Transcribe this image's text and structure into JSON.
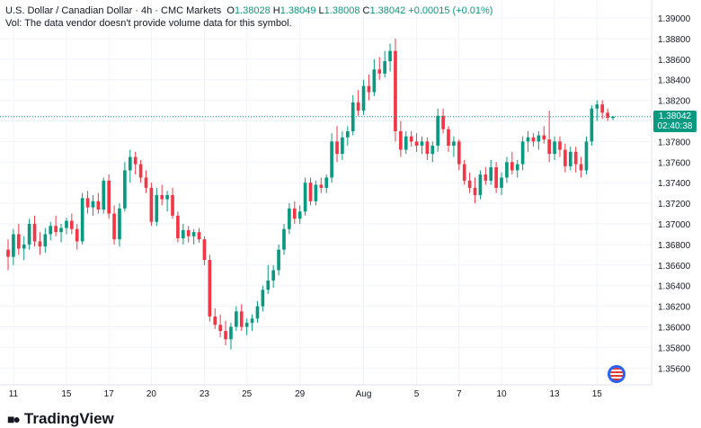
{
  "header": {
    "symbol": "U.S. Dollar / Canadian Dollar · 4h · CMC Markets",
    "o_label": "O",
    "o": "1.38028",
    "h_label": "H",
    "h": "1.38049",
    "l_label": "L",
    "l": "1.38008",
    "c_label": "C",
    "c": "1.38042",
    "change": "+0.00015 (+0.01%)",
    "vol_note": "Vol: The data vendor doesn't provide volume data for this symbol."
  },
  "price_label": {
    "price": "1.38042",
    "countdown": "02:40:38"
  },
  "brand": {
    "name": "TradingView"
  },
  "colors": {
    "up": "#089981",
    "down": "#f23645",
    "grid": "#f0f3fa",
    "last_line": "#089981"
  },
  "chart_data": {
    "type": "candlestick",
    "y_axis": {
      "min": 1.355,
      "max": 1.391,
      "ticks": [
        "1.39000",
        "1.38800",
        "1.38600",
        "1.38400",
        "1.38200",
        "1.38000",
        "1.37800",
        "1.37600",
        "1.37400",
        "1.37200",
        "1.37000",
        "1.36800",
        "1.36600",
        "1.36400",
        "1.36200",
        "1.36000",
        "1.35800",
        "1.35600"
      ]
    },
    "x_axis": {
      "ticks": [
        {
          "label": "11",
          "i": 1
        },
        {
          "label": "15",
          "i": 11
        },
        {
          "label": "17",
          "i": 19
        },
        {
          "label": "20",
          "i": 27
        },
        {
          "label": "23",
          "i": 37
        },
        {
          "label": "25",
          "i": 45
        },
        {
          "label": "29",
          "i": 55
        },
        {
          "label": "Aug",
          "i": 67
        },
        {
          "label": "5",
          "i": 77
        },
        {
          "label": "7",
          "i": 85
        },
        {
          "label": "10",
          "i": 93
        },
        {
          "label": "13",
          "i": 103
        },
        {
          "label": "15",
          "i": 111
        }
      ]
    },
    "grid": true,
    "last_price": 1.38042,
    "candles": [
      [
        1.3675,
        1.3685,
        1.3655,
        1.3668
      ],
      [
        1.3668,
        1.3695,
        1.366,
        1.369
      ],
      [
        1.369,
        1.37,
        1.367,
        1.3676
      ],
      [
        1.3676,
        1.3688,
        1.3665,
        1.368
      ],
      [
        1.368,
        1.3705,
        1.3675,
        1.37
      ],
      [
        1.37,
        1.3708,
        1.3678,
        1.3683
      ],
      [
        1.3683,
        1.3692,
        1.367,
        1.3678
      ],
      [
        1.3678,
        1.3696,
        1.3672,
        1.369
      ],
      [
        1.369,
        1.3702,
        1.3684,
        1.3698
      ],
      [
        1.3698,
        1.3708,
        1.3688,
        1.3692
      ],
      [
        1.3692,
        1.37,
        1.3682,
        1.3696
      ],
      [
        1.3696,
        1.3706,
        1.369,
        1.3703
      ],
      [
        1.3703,
        1.371,
        1.369,
        1.3695
      ],
      [
        1.3695,
        1.37,
        1.3675,
        1.3683
      ],
      [
        1.3683,
        1.373,
        1.368,
        1.3725
      ],
      [
        1.3725,
        1.3732,
        1.371,
        1.3716
      ],
      [
        1.3716,
        1.3728,
        1.3708,
        1.3722
      ],
      [
        1.3722,
        1.373,
        1.371,
        1.3714
      ],
      [
        1.3714,
        1.3745,
        1.371,
        1.3742
      ],
      [
        1.3742,
        1.3748,
        1.3705,
        1.371
      ],
      [
        1.371,
        1.3718,
        1.368,
        1.3685
      ],
      [
        1.3685,
        1.372,
        1.3678,
        1.3715
      ],
      [
        1.3715,
        1.376,
        1.3712,
        1.3752
      ],
      [
        1.3752,
        1.3772,
        1.374,
        1.3765
      ],
      [
        1.3765,
        1.377,
        1.3748,
        1.3758
      ],
      [
        1.3758,
        1.3762,
        1.374,
        1.3745
      ],
      [
        1.3745,
        1.3752,
        1.373,
        1.3735
      ],
      [
        1.3735,
        1.374,
        1.3698,
        1.3702
      ],
      [
        1.3702,
        1.3735,
        1.3698,
        1.3728
      ],
      [
        1.3728,
        1.3738,
        1.3718,
        1.3724
      ],
      [
        1.3724,
        1.3732,
        1.3712,
        1.3728
      ],
      [
        1.3728,
        1.3735,
        1.3705,
        1.3708
      ],
      [
        1.3708,
        1.3712,
        1.3682,
        1.3686
      ],
      [
        1.3686,
        1.37,
        1.368,
        1.3694
      ],
      [
        1.3694,
        1.3698,
        1.3682,
        1.3688
      ],
      [
        1.3688,
        1.3695,
        1.368,
        1.3692
      ],
      [
        1.3692,
        1.3696,
        1.3682,
        1.3685
      ],
      [
        1.3685,
        1.3688,
        1.366,
        1.3665
      ],
      [
        1.3665,
        1.367,
        1.3605,
        1.361
      ],
      [
        1.361,
        1.3618,
        1.3598,
        1.3602
      ],
      [
        1.3602,
        1.3612,
        1.359,
        1.3596
      ],
      [
        1.3596,
        1.3606,
        1.3582,
        1.3588
      ],
      [
        1.3588,
        1.3604,
        1.3578,
        1.36
      ],
      [
        1.36,
        1.362,
        1.3596,
        1.3615
      ],
      [
        1.3615,
        1.3622,
        1.3596,
        1.36
      ],
      [
        1.36,
        1.3608,
        1.3592,
        1.3604
      ],
      [
        1.3604,
        1.3612,
        1.3596,
        1.3608
      ],
      [
        1.3608,
        1.3625,
        1.3604,
        1.362
      ],
      [
        1.362,
        1.364,
        1.3615,
        1.3636
      ],
      [
        1.3636,
        1.366,
        1.3632,
        1.3645
      ],
      [
        1.3645,
        1.366,
        1.3638,
        1.3655
      ],
      [
        1.3655,
        1.368,
        1.365,
        1.3675
      ],
      [
        1.3675,
        1.37,
        1.367,
        1.3695
      ],
      [
        1.3695,
        1.372,
        1.369,
        1.3715
      ],
      [
        1.3715,
        1.3722,
        1.37,
        1.3705
      ],
      [
        1.3705,
        1.3718,
        1.37,
        1.3712
      ],
      [
        1.3712,
        1.3745,
        1.3708,
        1.374
      ],
      [
        1.374,
        1.3745,
        1.3718,
        1.3722
      ],
      [
        1.3722,
        1.3742,
        1.3718,
        1.3738
      ],
      [
        1.3738,
        1.3745,
        1.373,
        1.3735
      ],
      [
        1.3735,
        1.3748,
        1.373,
        1.3745
      ],
      [
        1.3745,
        1.3788,
        1.374,
        1.378
      ],
      [
        1.378,
        1.3795,
        1.376,
        1.3768
      ],
      [
        1.3768,
        1.379,
        1.3762,
        1.3784
      ],
      [
        1.3784,
        1.3795,
        1.3776,
        1.379
      ],
      [
        1.379,
        1.3825,
        1.3786,
        1.3818
      ],
      [
        1.3818,
        1.383,
        1.3805,
        1.381
      ],
      [
        1.381,
        1.384,
        1.3806,
        1.3834
      ],
      [
        1.3834,
        1.3845,
        1.382,
        1.3828
      ],
      [
        1.3828,
        1.386,
        1.3824,
        1.385
      ],
      [
        1.385,
        1.3862,
        1.384,
        1.3846
      ],
      [
        1.3846,
        1.3868,
        1.3842,
        1.3858
      ],
      [
        1.3858,
        1.3875,
        1.3848,
        1.3868
      ],
      [
        1.3868,
        1.388,
        1.378,
        1.379
      ],
      [
        1.379,
        1.38,
        1.3765,
        1.3772
      ],
      [
        1.3772,
        1.379,
        1.3768,
        1.3785
      ],
      [
        1.3785,
        1.379,
        1.3775,
        1.378
      ],
      [
        1.378,
        1.3788,
        1.377,
        1.3776
      ],
      [
        1.3776,
        1.3785,
        1.3768,
        1.378
      ],
      [
        1.378,
        1.3784,
        1.3762,
        1.3768
      ],
      [
        1.3768,
        1.378,
        1.376,
        1.3776
      ],
      [
        1.3776,
        1.3812,
        1.377,
        1.3805
      ],
      [
        1.3805,
        1.3812,
        1.3788,
        1.3792
      ],
      [
        1.3792,
        1.3795,
        1.377,
        1.3776
      ],
      [
        1.3776,
        1.3785,
        1.3765,
        1.378
      ],
      [
        1.378,
        1.3782,
        1.3752,
        1.3758
      ],
      [
        1.3758,
        1.3762,
        1.3738,
        1.3742
      ],
      [
        1.3742,
        1.375,
        1.373,
        1.3735
      ],
      [
        1.3735,
        1.3745,
        1.372,
        1.3728
      ],
      [
        1.3728,
        1.3752,
        1.3724,
        1.3748
      ],
      [
        1.3748,
        1.3755,
        1.3738,
        1.3742
      ],
      [
        1.3742,
        1.3762,
        1.3738,
        1.3755
      ],
      [
        1.3755,
        1.376,
        1.373,
        1.3735
      ],
      [
        1.3735,
        1.375,
        1.3728,
        1.3745
      ],
      [
        1.3745,
        1.3765,
        1.374,
        1.376
      ],
      [
        1.376,
        1.377,
        1.3748,
        1.3752
      ],
      [
        1.3752,
        1.3762,
        1.3745,
        1.3758
      ],
      [
        1.3758,
        1.3785,
        1.3752,
        1.378
      ],
      [
        1.378,
        1.379,
        1.377,
        1.3784
      ],
      [
        1.3784,
        1.3788,
        1.3775,
        1.378
      ],
      [
        1.378,
        1.379,
        1.3772,
        1.3786
      ],
      [
        1.3786,
        1.3795,
        1.3778,
        1.3782
      ],
      [
        1.3782,
        1.381,
        1.376,
        1.3768
      ],
      [
        1.3768,
        1.3785,
        1.3762,
        1.378
      ],
      [
        1.378,
        1.3785,
        1.3765,
        1.3772
      ],
      [
        1.3772,
        1.3778,
        1.375,
        1.3756
      ],
      [
        1.3756,
        1.3775,
        1.3752,
        1.377
      ],
      [
        1.377,
        1.3775,
        1.375,
        1.3758
      ],
      [
        1.3758,
        1.3765,
        1.3745,
        1.3752
      ],
      [
        1.3752,
        1.3785,
        1.3748,
        1.378
      ],
      [
        1.378,
        1.3815,
        1.3776,
        1.3812
      ],
      [
        1.3812,
        1.382,
        1.38,
        1.3816
      ],
      [
        1.3816,
        1.382,
        1.3802,
        1.3808
      ],
      [
        1.3808,
        1.3812,
        1.38,
        1.3803
      ],
      [
        1.38028,
        1.38049,
        1.38008,
        1.38042
      ]
    ]
  }
}
